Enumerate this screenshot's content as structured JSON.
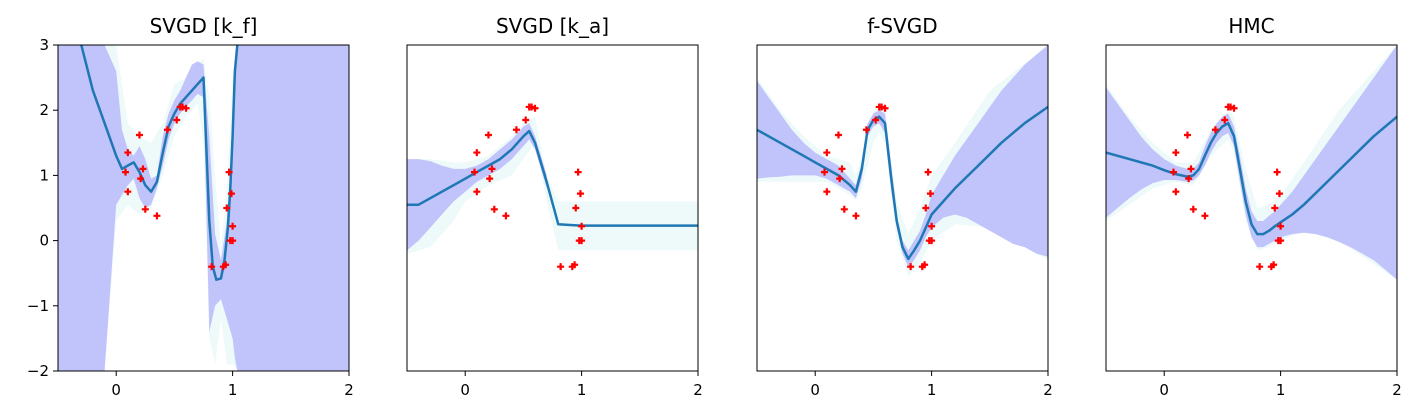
{
  "figure": {
    "ylim": [
      -2,
      3
    ],
    "xlim": [
      -0.5,
      2
    ]
  },
  "chart_data": [
    {
      "type": "line",
      "title": "SVGD [k_f]",
      "xlim": [
        -0.5,
        2
      ],
      "ylim": [
        -2,
        3
      ],
      "xticks": [
        0,
        1,
        2
      ],
      "yticks": [
        -2,
        -1,
        0,
        1,
        2,
        3
      ],
      "show_yticks": true,
      "grid": false,
      "mean_color": "#1f77b4",
      "band_color": "#c0c4fb",
      "band_outer_color": "#eefafa",
      "point_color": "#ff0000",
      "mean": {
        "x": [
          -0.3,
          -0.2,
          -0.1,
          0.0,
          0.05,
          0.1,
          0.15,
          0.2,
          0.25,
          0.3,
          0.35,
          0.4,
          0.45,
          0.5,
          0.55,
          0.6,
          0.65,
          0.7,
          0.75,
          0.8,
          0.83,
          0.86,
          0.9,
          0.93,
          0.96,
          0.98,
          1.0,
          1.02,
          1.04
        ],
        "y": [
          3.0,
          2.3,
          1.8,
          1.3,
          1.1,
          1.15,
          1.2,
          1.05,
          0.85,
          0.75,
          0.9,
          1.35,
          1.75,
          1.95,
          2.1,
          2.2,
          2.3,
          2.4,
          2.5,
          0.3,
          -0.4,
          -0.6,
          -0.58,
          -0.3,
          0.2,
          0.8,
          1.6,
          2.6,
          3.0
        ]
      },
      "band_outer": {
        "x": [
          -0.5,
          -0.4,
          -0.3,
          -0.2,
          -0.1,
          0.0,
          0.1,
          0.2,
          0.3,
          0.4,
          0.5,
          0.6,
          0.7,
          0.75,
          0.8,
          0.85,
          0.9,
          0.95,
          1.0,
          1.05,
          1.2,
          1.5,
          2.0
        ],
        "upper": [
          3.0,
          3.0,
          3.0,
          3.0,
          3.0,
          3.0,
          1.8,
          1.6,
          1.5,
          1.8,
          2.4,
          2.5,
          2.7,
          2.8,
          2.2,
          1.0,
          -0.1,
          0.8,
          2.5,
          3.0,
          3.0,
          3.0,
          3.0
        ],
        "lower": [
          -2.0,
          -2.0,
          -2.0,
          -2.0,
          -2.0,
          0.3,
          0.55,
          0.4,
          0.5,
          1.0,
          1.6,
          1.9,
          2.1,
          1.5,
          -1.5,
          -1.9,
          -1.2,
          -1.9,
          -1.9,
          -2.0,
          -2.0,
          -2.0,
          -2.0
        ]
      },
      "band": {
        "x": [
          -0.5,
          -0.4,
          -0.3,
          -0.2,
          -0.1,
          0.0,
          0.05,
          0.1,
          0.15,
          0.2,
          0.25,
          0.3,
          0.35,
          0.4,
          0.45,
          0.5,
          0.55,
          0.6,
          0.65,
          0.7,
          0.75,
          0.8,
          0.85,
          0.9,
          0.95,
          1.0,
          1.02,
          1.04,
          1.06,
          1.2,
          1.5,
          2.0
        ],
        "upper": [
          3.0,
          3.0,
          3.0,
          3.0,
          3.0,
          2.6,
          1.7,
          1.4,
          1.3,
          1.45,
          1.25,
          0.95,
          1.0,
          1.6,
          1.95,
          2.15,
          2.3,
          2.5,
          2.7,
          2.75,
          2.7,
          1.6,
          0.1,
          -0.3,
          0.3,
          1.6,
          2.4,
          3.0,
          3.0,
          3.0,
          3.0,
          3.0
        ],
        "lower": [
          -2.0,
          -2.0,
          -2.0,
          -2.0,
          -2.0,
          0.55,
          0.7,
          0.85,
          0.95,
          0.65,
          0.5,
          0.55,
          0.8,
          1.15,
          1.55,
          1.8,
          1.95,
          2.05,
          2.15,
          2.25,
          2.2,
          -1.4,
          -1.0,
          -0.9,
          -1.2,
          -1.5,
          -1.8,
          -2.0,
          -2.0,
          -2.0,
          -2.0,
          -2.0
        ]
      },
      "points": {
        "x": [
          0.08,
          0.1,
          0.1,
          0.2,
          0.21,
          0.23,
          0.25,
          0.35,
          0.44,
          0.52,
          0.55,
          0.57,
          0.6,
          0.82,
          0.92,
          0.94,
          0.95,
          0.97,
          0.98,
          0.99,
          1.0,
          1.0
        ],
        "y": [
          1.05,
          1.35,
          0.75,
          1.62,
          0.95,
          1.1,
          0.48,
          0.38,
          1.7,
          1.85,
          2.05,
          2.05,
          2.03,
          -0.4,
          -0.4,
          -0.37,
          0.5,
          1.05,
          0.0,
          0.72,
          0.22,
          0.0
        ]
      }
    },
    {
      "type": "line",
      "title": "SVGD [k_a]",
      "xlim": [
        -0.5,
        2
      ],
      "ylim": [
        -2,
        3
      ],
      "xticks": [
        0,
        1,
        2
      ],
      "yticks": [
        -2,
        -1,
        0,
        1,
        2,
        3
      ],
      "show_yticks": false,
      "grid": false,
      "mean_color": "#1f77b4",
      "band_color": "#c0c4fb",
      "band_outer_color": "#eefafa",
      "point_color": "#ff0000",
      "mean": {
        "x": [
          -0.5,
          -0.4,
          -0.3,
          -0.2,
          -0.1,
          0.0,
          0.1,
          0.2,
          0.3,
          0.4,
          0.5,
          0.55,
          0.6,
          0.7,
          0.8,
          0.9,
          1.0,
          1.5,
          2.0
        ],
        "y": [
          0.55,
          0.55,
          0.65,
          0.75,
          0.85,
          0.95,
          1.05,
          1.15,
          1.25,
          1.4,
          1.6,
          1.68,
          1.5,
          0.9,
          0.25,
          0.24,
          0.23,
          0.23,
          0.23
        ]
      },
      "band_outer": {
        "x": [
          -0.5,
          -0.3,
          -0.1,
          0.0,
          0.2,
          0.4,
          0.5,
          0.6,
          0.7,
          0.8,
          0.85,
          1.0,
          1.5,
          2.0
        ],
        "upper": [
          1.25,
          1.25,
          1.2,
          1.2,
          1.3,
          1.6,
          1.8,
          1.9,
          1.0,
          0.6,
          0.6,
          0.6,
          0.6,
          0.6
        ],
        "lower": [
          -0.2,
          -0.1,
          0.3,
          0.6,
          0.85,
          1.0,
          1.25,
          1.5,
          0.6,
          -0.15,
          -0.15,
          -0.15,
          -0.15,
          -0.15
        ]
      },
      "band": {
        "x": [
          -0.5,
          -0.4,
          -0.3,
          -0.2,
          -0.1,
          0.0,
          0.1,
          0.2,
          0.3,
          0.4,
          0.5,
          0.55,
          0.6,
          0.65,
          0.7
        ],
        "upper": [
          1.25,
          1.25,
          1.22,
          1.15,
          1.1,
          1.1,
          1.15,
          1.25,
          1.4,
          1.55,
          1.75,
          1.8,
          1.6,
          1.3,
          1.0
        ],
        "lower": [
          -0.15,
          0.0,
          0.2,
          0.4,
          0.6,
          0.75,
          0.9,
          1.0,
          1.1,
          1.25,
          1.45,
          1.55,
          1.4,
          1.1,
          0.8
        ]
      },
      "points": {
        "x": [
          0.08,
          0.1,
          0.1,
          0.2,
          0.21,
          0.23,
          0.25,
          0.35,
          0.44,
          0.52,
          0.55,
          0.57,
          0.6,
          0.82,
          0.92,
          0.94,
          0.95,
          0.97,
          0.98,
          0.99,
          1.0,
          1.0
        ],
        "y": [
          1.05,
          1.35,
          0.75,
          1.62,
          0.95,
          1.1,
          0.48,
          0.38,
          1.7,
          1.85,
          2.05,
          2.05,
          2.03,
          -0.4,
          -0.4,
          -0.37,
          0.5,
          1.05,
          0.0,
          0.72,
          0.22,
          0.0
        ]
      }
    },
    {
      "type": "line",
      "title": "f-SVGD",
      "xlim": [
        -0.5,
        2
      ],
      "ylim": [
        -2,
        3
      ],
      "xticks": [
        0,
        1,
        2
      ],
      "yticks": [
        -2,
        -1,
        0,
        1,
        2,
        3
      ],
      "show_yticks": false,
      "grid": false,
      "mean_color": "#1f77b4",
      "band_color": "#c0c4fb",
      "band_outer_color": "#eefafa",
      "point_color": "#ff0000",
      "mean": {
        "x": [
          -0.5,
          -0.3,
          -0.1,
          0.0,
          0.1,
          0.2,
          0.3,
          0.35,
          0.4,
          0.45,
          0.5,
          0.55,
          0.6,
          0.65,
          0.7,
          0.75,
          0.8,
          0.85,
          0.9,
          0.95,
          1.0,
          1.1,
          1.2,
          1.4,
          1.6,
          1.8,
          2.0
        ],
        "y": [
          1.7,
          1.5,
          1.3,
          1.2,
          1.1,
          1.0,
          0.85,
          0.75,
          1.1,
          1.7,
          1.85,
          1.9,
          1.8,
          1.0,
          0.3,
          -0.1,
          -0.28,
          -0.15,
          0.0,
          0.2,
          0.4,
          0.6,
          0.8,
          1.15,
          1.5,
          1.8,
          2.05
        ]
      },
      "band_outer": {
        "x": [
          -0.5,
          -0.3,
          -0.1,
          0.1,
          0.3,
          0.35,
          0.4,
          0.5,
          0.55,
          0.6,
          0.7,
          0.8,
          0.9,
          1.0,
          1.2,
          1.5,
          2.0
        ],
        "upper": [
          2.5,
          2.0,
          1.6,
          1.3,
          1.2,
          1.0,
          1.3,
          2.0,
          2.1,
          2.0,
          0.6,
          0.1,
          0.5,
          1.0,
          1.5,
          2.3,
          3.0
        ],
        "lower": [
          0.9,
          0.9,
          0.9,
          0.9,
          0.7,
          0.6,
          0.8,
          1.5,
          1.65,
          1.5,
          0.0,
          -0.55,
          -0.35,
          0.0,
          0.25,
          0.2,
          -0.3
        ]
      },
      "band": {
        "x": [
          -0.5,
          -0.4,
          -0.3,
          -0.2,
          -0.1,
          0.0,
          0.1,
          0.2,
          0.3,
          0.35,
          0.4,
          0.45,
          0.5,
          0.55,
          0.6,
          0.65,
          0.7,
          0.75,
          0.8,
          0.85,
          0.9,
          0.95,
          1.0,
          1.1,
          1.2,
          1.3,
          1.4,
          1.5,
          1.6,
          1.7,
          1.8,
          1.9,
          2.0
        ],
        "upper": [
          2.45,
          2.2,
          1.95,
          1.7,
          1.5,
          1.35,
          1.25,
          1.15,
          0.95,
          0.85,
          1.2,
          1.8,
          1.95,
          2.0,
          1.95,
          1.2,
          0.4,
          0.0,
          -0.15,
          0.0,
          0.15,
          0.4,
          0.7,
          1.0,
          1.3,
          1.55,
          1.8,
          2.05,
          2.3,
          2.5,
          2.7,
          2.85,
          3.0
        ],
        "lower": [
          0.95,
          0.97,
          0.98,
          1.0,
          1.0,
          1.0,
          0.95,
          0.85,
          0.75,
          0.65,
          0.95,
          1.6,
          1.75,
          1.8,
          1.65,
          0.8,
          0.2,
          -0.2,
          -0.4,
          -0.3,
          -0.15,
          0.05,
          0.2,
          0.35,
          0.4,
          0.35,
          0.25,
          0.15,
          0.05,
          -0.05,
          -0.1,
          -0.2,
          -0.25
        ]
      },
      "points": {
        "x": [
          0.08,
          0.1,
          0.1,
          0.2,
          0.21,
          0.23,
          0.25,
          0.35,
          0.44,
          0.52,
          0.55,
          0.57,
          0.6,
          0.82,
          0.92,
          0.94,
          0.95,
          0.97,
          0.98,
          0.99,
          1.0,
          1.0
        ],
        "y": [
          1.05,
          1.35,
          0.75,
          1.62,
          0.95,
          1.1,
          0.48,
          0.38,
          1.7,
          1.85,
          2.05,
          2.05,
          2.03,
          -0.4,
          -0.4,
          -0.37,
          0.5,
          1.05,
          0.0,
          0.72,
          0.22,
          0.0
        ]
      }
    },
    {
      "type": "line",
      "title": "HMC",
      "xlim": [
        -0.5,
        2
      ],
      "ylim": [
        -2,
        3
      ],
      "xticks": [
        0,
        1,
        2
      ],
      "yticks": [
        -2,
        -1,
        0,
        1,
        2,
        3
      ],
      "show_yticks": false,
      "grid": false,
      "mean_color": "#1f77b4",
      "band_color": "#c0c4fb",
      "band_outer_color": "#eefafa",
      "point_color": "#ff0000",
      "mean": {
        "x": [
          -0.5,
          -0.3,
          -0.1,
          0.0,
          0.1,
          0.2,
          0.25,
          0.3,
          0.35,
          0.4,
          0.45,
          0.5,
          0.55,
          0.6,
          0.65,
          0.7,
          0.75,
          0.8,
          0.85,
          0.9,
          0.95,
          1.0,
          1.1,
          1.2,
          1.4,
          1.6,
          1.8,
          2.0
        ],
        "y": [
          1.35,
          1.25,
          1.15,
          1.08,
          1.02,
          0.98,
          1.0,
          1.1,
          1.3,
          1.5,
          1.65,
          1.75,
          1.8,
          1.6,
          1.1,
          0.6,
          0.25,
          0.1,
          0.1,
          0.15,
          0.22,
          0.28,
          0.4,
          0.55,
          0.9,
          1.25,
          1.6,
          1.9
        ]
      },
      "band_outer": {
        "x": [
          -0.5,
          -0.3,
          -0.1,
          0.1,
          0.25,
          0.4,
          0.55,
          0.6,
          0.7,
          0.8,
          0.9,
          1.0,
          1.2,
          1.5,
          2.0
        ],
        "upper": [
          2.4,
          1.9,
          1.5,
          1.2,
          1.2,
          1.7,
          2.0,
          1.9,
          1.1,
          0.5,
          0.55,
          0.7,
          1.2,
          2.0,
          3.0
        ],
        "lower": [
          0.3,
          0.55,
          0.8,
          0.9,
          0.85,
          1.3,
          1.55,
          1.35,
          0.3,
          -0.15,
          -0.1,
          0.0,
          0.15,
          0.0,
          -0.6
        ]
      },
      "band": {
        "x": [
          -0.5,
          -0.4,
          -0.3,
          -0.2,
          -0.1,
          0.0,
          0.1,
          0.2,
          0.25,
          0.3,
          0.35,
          0.4,
          0.45,
          0.5,
          0.55,
          0.6,
          0.65,
          0.7,
          0.75,
          0.8,
          0.85,
          0.9,
          0.95,
          1.0,
          1.1,
          1.2,
          1.3,
          1.4,
          1.5,
          1.6,
          1.7,
          1.8,
          1.9,
          2.0
        ],
        "upper": [
          2.35,
          2.1,
          1.85,
          1.6,
          1.4,
          1.25,
          1.15,
          1.1,
          1.1,
          1.2,
          1.45,
          1.65,
          1.8,
          1.9,
          1.95,
          1.75,
          1.3,
          0.8,
          0.45,
          0.3,
          0.3,
          0.38,
          0.45,
          0.55,
          0.75,
          1.0,
          1.25,
          1.5,
          1.75,
          2.0,
          2.25,
          2.5,
          2.75,
          3.0
        ],
        "lower": [
          0.35,
          0.5,
          0.65,
          0.78,
          0.88,
          0.93,
          0.93,
          0.9,
          0.92,
          1.0,
          1.15,
          1.35,
          1.5,
          1.6,
          1.65,
          1.45,
          0.9,
          0.4,
          0.05,
          -0.1,
          -0.1,
          -0.05,
          0.0,
          0.05,
          0.1,
          0.12,
          0.1,
          0.05,
          -0.02,
          -0.1,
          -0.2,
          -0.3,
          -0.45,
          -0.6
        ]
      },
      "points": {
        "x": [
          0.08,
          0.1,
          0.1,
          0.2,
          0.21,
          0.23,
          0.25,
          0.35,
          0.44,
          0.52,
          0.55,
          0.57,
          0.6,
          0.82,
          0.92,
          0.94,
          0.95,
          0.97,
          0.98,
          0.99,
          1.0,
          1.0
        ],
        "y": [
          1.05,
          1.35,
          0.75,
          1.62,
          0.95,
          1.1,
          0.48,
          0.38,
          1.7,
          1.85,
          2.05,
          2.05,
          2.03,
          -0.4,
          -0.4,
          -0.37,
          0.5,
          1.05,
          0.0,
          0.72,
          0.22,
          0.0
        ]
      }
    }
  ]
}
